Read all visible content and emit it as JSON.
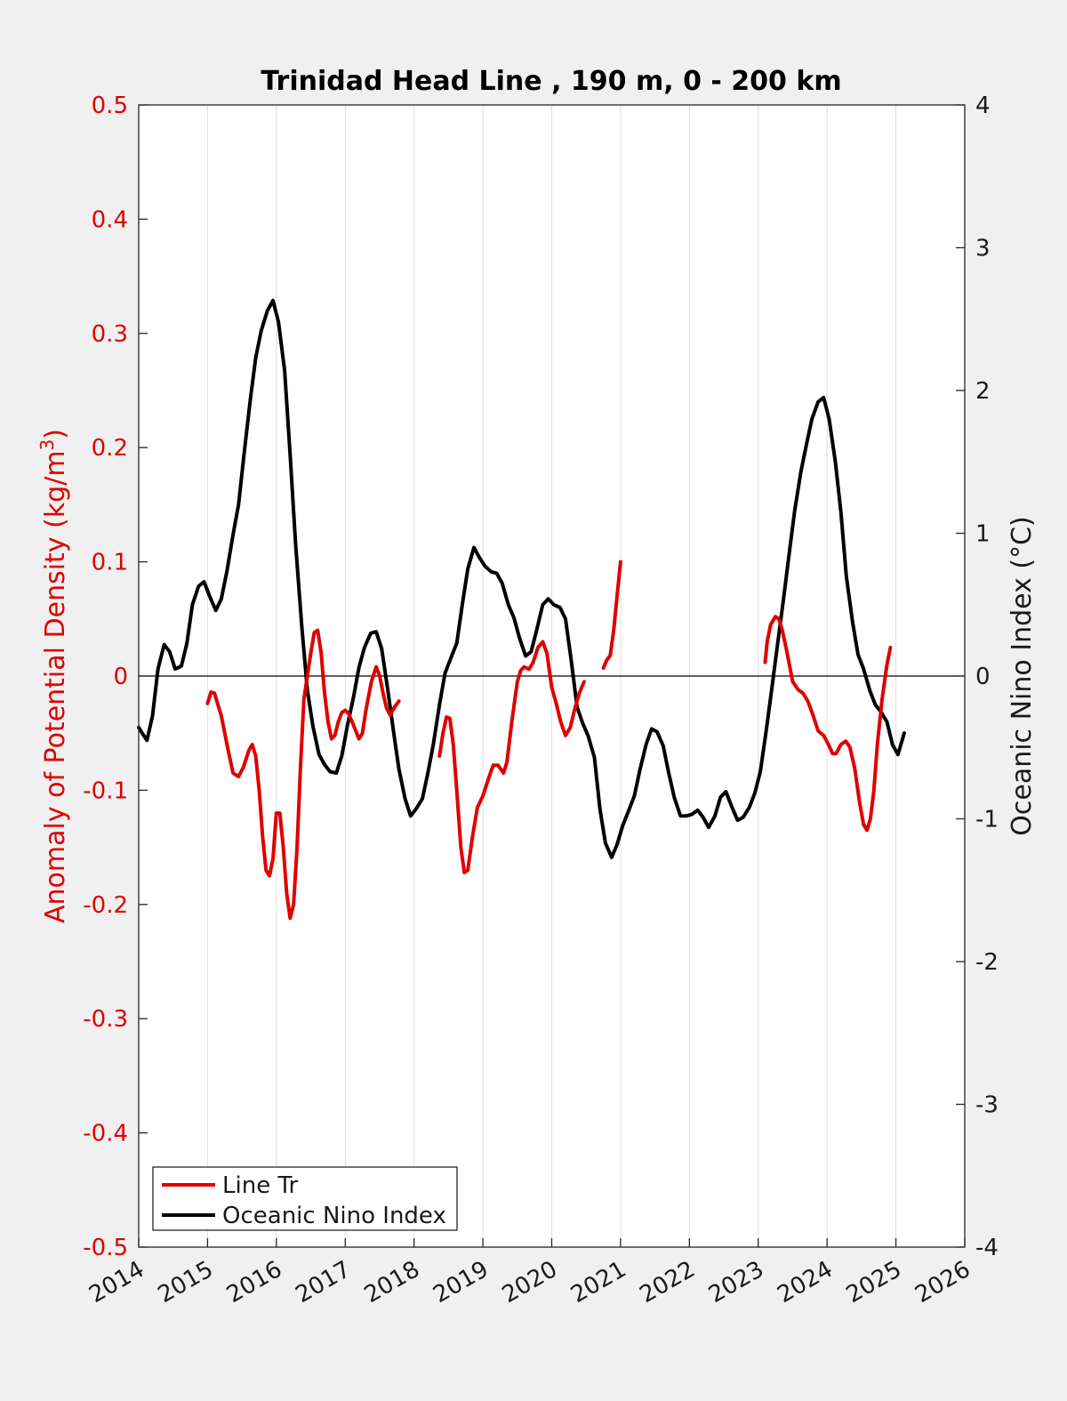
{
  "chart_data": {
    "type": "line",
    "title": "Trinidad Head Line , 190 m, 0 - 200 km",
    "xlabel": "",
    "xlim": [
      2014,
      2026
    ],
    "x_ticks": [
      "2014",
      "2015",
      "2016",
      "2017",
      "2018",
      "2019",
      "2020",
      "2021",
      "2022",
      "2023",
      "2024",
      "2025",
      "2026"
    ],
    "ylabel_left": "Anomaly of Potential Density (kg/m",
    "ylabel_left_sup": "3",
    "ylabel_left_close": ")",
    "ylim_left": [
      -0.5,
      0.5
    ],
    "y_ticks_left": [
      "-0.5",
      "-0.4",
      "-0.3",
      "-0.2",
      "-0.1",
      "0",
      "0.1",
      "0.2",
      "0.3",
      "0.4",
      "0.5"
    ],
    "ylabel_right": "Oceanic Nino Index (°C)",
    "ylim_right": [
      -4,
      4
    ],
    "y_ticks_right": [
      "-4",
      "-3",
      "-2",
      "-1",
      "0",
      "1",
      "2",
      "3",
      "4"
    ],
    "grid": "vertical",
    "zero_line": true,
    "legend_position": "bottom-left",
    "colors": {
      "line_tr": "#e00000",
      "oni": "#000000",
      "left_axis": "#e00000"
    },
    "series": [
      {
        "name": "Line Tr",
        "axis": "left",
        "segments": [
          [
            [
              2015.0,
              -0.024
            ],
            [
              2015.05,
              -0.014
            ],
            [
              2015.1,
              -0.015
            ],
            [
              2015.2,
              -0.035
            ],
            [
              2015.3,
              -0.065
            ],
            [
              2015.37,
              -0.085
            ],
            [
              2015.45,
              -0.088
            ],
            [
              2015.52,
              -0.08
            ],
            [
              2015.6,
              -0.065
            ],
            [
              2015.65,
              -0.06
            ],
            [
              2015.7,
              -0.07
            ],
            [
              2015.75,
              -0.1
            ],
            [
              2015.8,
              -0.14
            ],
            [
              2015.85,
              -0.17
            ],
            [
              2015.9,
              -0.175
            ],
            [
              2015.95,
              -0.16
            ],
            [
              2016.0,
              -0.12
            ],
            [
              2016.05,
              -0.12
            ],
            [
              2016.1,
              -0.15
            ],
            [
              2016.15,
              -0.19
            ],
            [
              2016.2,
              -0.212
            ],
            [
              2016.25,
              -0.2
            ],
            [
              2016.3,
              -0.15
            ],
            [
              2016.35,
              -0.08
            ],
            [
              2016.4,
              -0.02
            ],
            [
              2016.45,
              0.0
            ],
            [
              2016.5,
              0.02
            ],
            [
              2016.55,
              0.038
            ],
            [
              2016.6,
              0.04
            ],
            [
              2016.65,
              0.02
            ],
            [
              2016.7,
              -0.015
            ],
            [
              2016.75,
              -0.04
            ],
            [
              2016.8,
              -0.055
            ],
            [
              2016.85,
              -0.052
            ],
            [
              2016.9,
              -0.04
            ],
            [
              2016.95,
              -0.032
            ],
            [
              2017.0,
              -0.03
            ],
            [
              2017.05,
              -0.033
            ],
            [
              2017.1,
              -0.04
            ],
            [
              2017.2,
              -0.055
            ],
            [
              2017.25,
              -0.05
            ],
            [
              2017.3,
              -0.03
            ],
            [
              2017.38,
              -0.005
            ],
            [
              2017.45,
              0.008
            ],
            [
              2017.5,
              0.0
            ],
            [
              2017.55,
              -0.015
            ],
            [
              2017.6,
              -0.028
            ],
            [
              2017.65,
              -0.034
            ],
            [
              2017.72,
              -0.027
            ],
            [
              2017.78,
              -0.022
            ]
          ],
          [
            [
              2018.37,
              -0.07
            ],
            [
              2018.42,
              -0.05
            ],
            [
              2018.47,
              -0.036
            ],
            [
              2018.52,
              -0.037
            ],
            [
              2018.57,
              -0.06
            ],
            [
              2018.62,
              -0.1
            ],
            [
              2018.68,
              -0.15
            ],
            [
              2018.73,
              -0.172
            ],
            [
              2018.78,
              -0.17
            ],
            [
              2018.85,
              -0.14
            ],
            [
              2018.92,
              -0.115
            ],
            [
              2019.0,
              -0.105
            ],
            [
              2019.08,
              -0.09
            ],
            [
              2019.15,
              -0.078
            ],
            [
              2019.22,
              -0.078
            ],
            [
              2019.3,
              -0.085
            ],
            [
              2019.35,
              -0.075
            ],
            [
              2019.42,
              -0.04
            ],
            [
              2019.5,
              -0.005
            ],
            [
              2019.55,
              0.005
            ],
            [
              2019.6,
              0.008
            ],
            [
              2019.67,
              0.006
            ],
            [
              2019.73,
              0.012
            ],
            [
              2019.8,
              0.025
            ],
            [
              2019.87,
              0.03
            ],
            [
              2019.93,
              0.02
            ],
            [
              2020.0,
              -0.01
            ],
            [
              2020.07,
              -0.025
            ],
            [
              2020.13,
              -0.04
            ],
            [
              2020.2,
              -0.052
            ],
            [
              2020.27,
              -0.045
            ],
            [
              2020.33,
              -0.03
            ],
            [
              2020.4,
              -0.015
            ],
            [
              2020.47,
              -0.005
            ]
          ],
          [
            [
              2020.75,
              0.007
            ],
            [
              2020.8,
              0.014
            ],
            [
              2020.85,
              0.018
            ],
            [
              2020.9,
              0.04
            ],
            [
              2020.95,
              0.07
            ],
            [
              2021.0,
              0.1
            ]
          ],
          [
            [
              2023.1,
              0.012
            ],
            [
              2023.13,
              0.03
            ],
            [
              2023.18,
              0.045
            ],
            [
              2023.25,
              0.052
            ],
            [
              2023.3,
              0.05
            ],
            [
              2023.35,
              0.04
            ],
            [
              2023.42,
              0.02
            ],
            [
              2023.5,
              -0.005
            ],
            [
              2023.58,
              -0.012
            ],
            [
              2023.65,
              -0.015
            ],
            [
              2023.72,
              -0.022
            ],
            [
              2023.8,
              -0.035
            ],
            [
              2023.87,
              -0.048
            ],
            [
              2023.95,
              -0.052
            ],
            [
              2024.02,
              -0.06
            ],
            [
              2024.08,
              -0.068
            ],
            [
              2024.13,
              -0.068
            ],
            [
              2024.2,
              -0.06
            ],
            [
              2024.27,
              -0.057
            ],
            [
              2024.33,
              -0.062
            ],
            [
              2024.4,
              -0.08
            ],
            [
              2024.47,
              -0.11
            ],
            [
              2024.53,
              -0.13
            ],
            [
              2024.58,
              -0.135
            ],
            [
              2024.63,
              -0.125
            ],
            [
              2024.68,
              -0.1
            ],
            [
              2024.73,
              -0.06
            ],
            [
              2024.8,
              -0.02
            ],
            [
              2024.87,
              0.01
            ],
            [
              2024.92,
              0.025
            ]
          ]
        ]
      },
      {
        "name": "Oceanic Nino Index",
        "axis": "right",
        "segments": [
          [
            [
              2014.0,
              -0.36
            ],
            [
              2014.05,
              -0.4
            ],
            [
              2014.12,
              -0.45
            ],
            [
              2014.2,
              -0.28
            ],
            [
              2014.28,
              0.05
            ],
            [
              2014.37,
              0.22
            ],
            [
              2014.45,
              0.17
            ],
            [
              2014.53,
              0.05
            ],
            [
              2014.62,
              0.07
            ],
            [
              2014.7,
              0.23
            ],
            [
              2014.78,
              0.5
            ],
            [
              2014.87,
              0.63
            ],
            [
              2014.95,
              0.66
            ],
            [
              2015.03,
              0.56
            ],
            [
              2015.12,
              0.46
            ],
            [
              2015.2,
              0.54
            ],
            [
              2015.28,
              0.73
            ],
            [
              2015.37,
              0.99
            ],
            [
              2015.45,
              1.2
            ],
            [
              2015.53,
              1.55
            ],
            [
              2015.62,
              1.93
            ],
            [
              2015.7,
              2.23
            ],
            [
              2015.78,
              2.42
            ],
            [
              2015.87,
              2.56
            ],
            [
              2015.95,
              2.63
            ],
            [
              2016.03,
              2.48
            ],
            [
              2016.12,
              2.14
            ],
            [
              2016.2,
              1.55
            ],
            [
              2016.28,
              0.92
            ],
            [
              2016.37,
              0.34
            ],
            [
              2016.45,
              -0.1
            ],
            [
              2016.53,
              -0.35
            ],
            [
              2016.62,
              -0.55
            ],
            [
              2016.7,
              -0.62
            ],
            [
              2016.78,
              -0.67
            ],
            [
              2016.87,
              -0.68
            ],
            [
              2016.95,
              -0.56
            ],
            [
              2017.03,
              -0.35
            ],
            [
              2017.12,
              -0.15
            ],
            [
              2017.2,
              0.06
            ],
            [
              2017.28,
              0.2
            ],
            [
              2017.37,
              0.3
            ],
            [
              2017.45,
              0.31
            ],
            [
              2017.53,
              0.19
            ],
            [
              2017.62,
              -0.1
            ],
            [
              2017.7,
              -0.38
            ],
            [
              2017.78,
              -0.65
            ],
            [
              2017.87,
              -0.86
            ],
            [
              2017.95,
              -0.98
            ],
            [
              2018.03,
              -0.93
            ],
            [
              2018.12,
              -0.86
            ],
            [
              2018.2,
              -0.68
            ],
            [
              2018.28,
              -0.48
            ],
            [
              2018.37,
              -0.2
            ],
            [
              2018.45,
              0.02
            ],
            [
              2018.53,
              0.12
            ],
            [
              2018.62,
              0.23
            ],
            [
              2018.7,
              0.5
            ],
            [
              2018.78,
              0.75
            ],
            [
              2018.87,
              0.9
            ],
            [
              2018.95,
              0.83
            ],
            [
              2019.03,
              0.77
            ],
            [
              2019.12,
              0.73
            ],
            [
              2019.2,
              0.72
            ],
            [
              2019.28,
              0.65
            ],
            [
              2019.37,
              0.5
            ],
            [
              2019.45,
              0.41
            ],
            [
              2019.53,
              0.27
            ],
            [
              2019.62,
              0.14
            ],
            [
              2019.7,
              0.17
            ],
            [
              2019.78,
              0.32
            ],
            [
              2019.87,
              0.5
            ],
            [
              2019.95,
              0.54
            ],
            [
              2020.03,
              0.5
            ],
            [
              2020.12,
              0.48
            ],
            [
              2020.2,
              0.4
            ],
            [
              2020.28,
              0.12
            ],
            [
              2020.37,
              -0.22
            ],
            [
              2020.45,
              -0.33
            ],
            [
              2020.53,
              -0.42
            ],
            [
              2020.62,
              -0.57
            ],
            [
              2020.7,
              -0.93
            ],
            [
              2020.78,
              -1.17
            ],
            [
              2020.87,
              -1.27
            ],
            [
              2020.95,
              -1.18
            ],
            [
              2021.03,
              -1.05
            ],
            [
              2021.12,
              -0.94
            ],
            [
              2021.2,
              -0.84
            ],
            [
              2021.28,
              -0.66
            ],
            [
              2021.37,
              -0.48
            ],
            [
              2021.45,
              -0.37
            ],
            [
              2021.53,
              -0.39
            ],
            [
              2021.62,
              -0.49
            ],
            [
              2021.7,
              -0.68
            ],
            [
              2021.78,
              -0.85
            ],
            [
              2021.87,
              -0.98
            ],
            [
              2021.95,
              -0.98
            ],
            [
              2022.03,
              -0.97
            ],
            [
              2022.12,
              -0.94
            ],
            [
              2022.2,
              -0.99
            ],
            [
              2022.28,
              -1.06
            ],
            [
              2022.37,
              -0.98
            ],
            [
              2022.45,
              -0.85
            ],
            [
              2022.53,
              -0.81
            ],
            [
              2022.62,
              -0.92
            ],
            [
              2022.7,
              -1.01
            ],
            [
              2022.78,
              -0.99
            ],
            [
              2022.87,
              -0.92
            ],
            [
              2022.95,
              -0.82
            ],
            [
              2023.03,
              -0.67
            ],
            [
              2023.12,
              -0.37
            ],
            [
              2023.2,
              -0.08
            ],
            [
              2023.28,
              0.22
            ],
            [
              2023.37,
              0.55
            ],
            [
              2023.45,
              0.86
            ],
            [
              2023.53,
              1.16
            ],
            [
              2023.62,
              1.43
            ],
            [
              2023.7,
              1.62
            ],
            [
              2023.78,
              1.8
            ],
            [
              2023.87,
              1.92
            ],
            [
              2023.95,
              1.95
            ],
            [
              2024.03,
              1.8
            ],
            [
              2024.12,
              1.5
            ],
            [
              2024.2,
              1.15
            ],
            [
              2024.28,
              0.7
            ],
            [
              2024.37,
              0.38
            ],
            [
              2024.45,
              0.15
            ],
            [
              2024.53,
              0.05
            ],
            [
              2024.62,
              -0.1
            ],
            [
              2024.7,
              -0.2
            ],
            [
              2024.78,
              -0.25
            ],
            [
              2024.87,
              -0.32
            ],
            [
              2024.95,
              -0.48
            ],
            [
              2025.03,
              -0.55
            ],
            [
              2025.12,
              -0.4
            ]
          ]
        ]
      }
    ]
  }
}
